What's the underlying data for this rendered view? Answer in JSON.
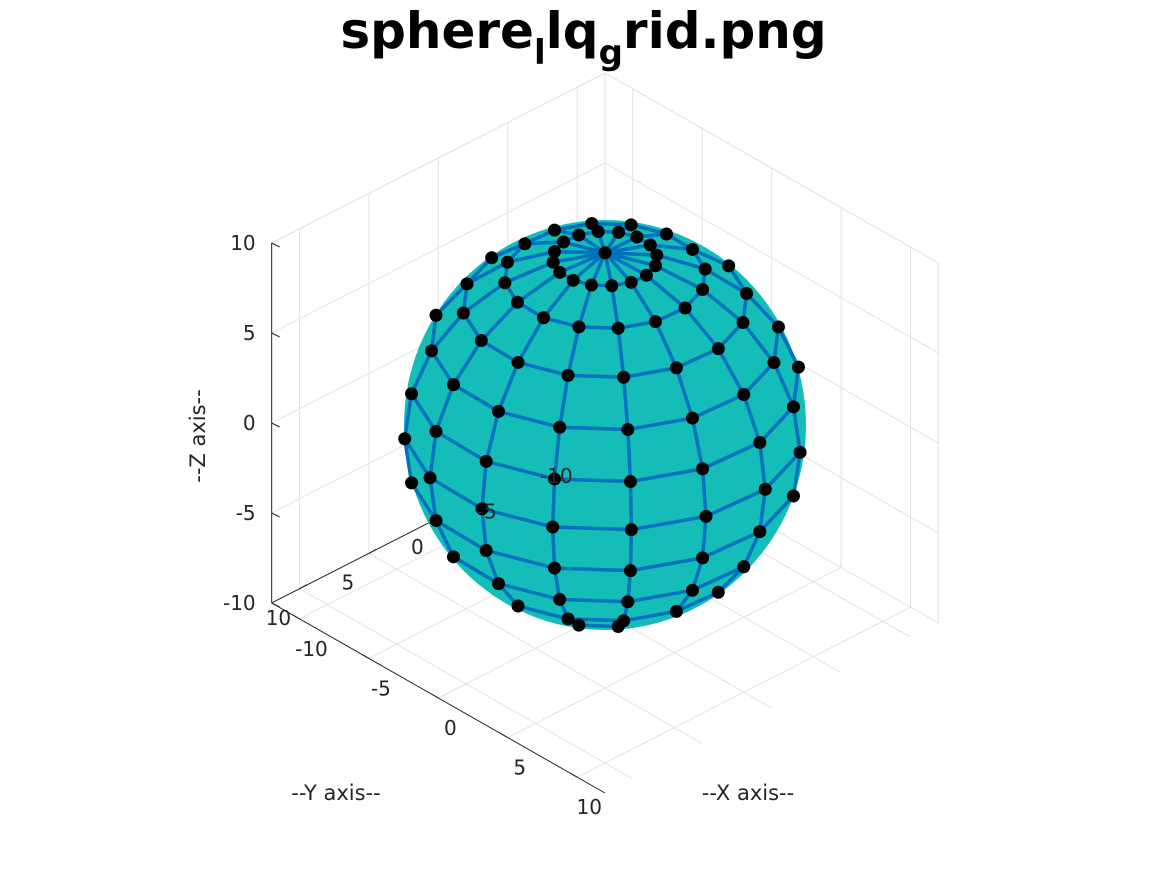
{
  "title": {
    "part1": "sphere",
    "sub1": "l",
    "part2": "lq",
    "sub2": "g",
    "part3": "rid.png"
  },
  "colors": {
    "surface": "#14bdb8",
    "grid_lines": "#0072bd",
    "nodes": "#000000",
    "gridlines_3d": "#e3e3e3",
    "axis": "#262626"
  },
  "chart_data": {
    "type": "scatter",
    "title": "sphere_lq_grid.png",
    "xlabel": "--X axis--",
    "ylabel": "--Y axis--",
    "zlabel": "--Z axis--",
    "xlim": [
      -12,
      12
    ],
    "ylim": [
      -12,
      12
    ],
    "zlim": [
      -10,
      10
    ],
    "xticks": [
      -10,
      -5,
      0,
      5,
      10
    ],
    "yticks": [
      -10,
      -5,
      0,
      5,
      10
    ],
    "zticks": [
      -10,
      -5,
      0,
      5,
      10
    ],
    "xtick_labels": [
      "-10",
      "-5",
      "0",
      "5",
      "10"
    ],
    "ytick_labels": [
      "-10",
      "-5",
      "0",
      "5",
      "10"
    ],
    "ztick_labels": [
      "-10",
      "-5",
      "0",
      "5",
      "10"
    ],
    "view": {
      "azimuth": -37.5,
      "elevation": 30
    },
    "grid": true,
    "sphere": {
      "radius": 10,
      "center": [
        0,
        0,
        0
      ],
      "latitude_bands": 12,
      "longitude_lines": 16
    }
  }
}
